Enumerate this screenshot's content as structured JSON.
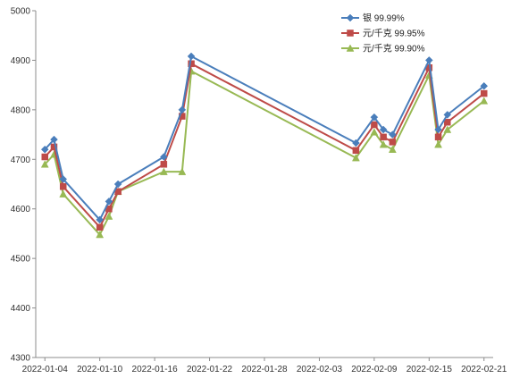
{
  "chart_data": {
    "type": "line",
    "title": "",
    "xlabel": "",
    "ylabel": "",
    "ylim": [
      4300,
      5000
    ],
    "yticks": [
      4300,
      4400,
      4500,
      4600,
      4700,
      4800,
      4900,
      5000
    ],
    "xlim": [
      "2022-01-03",
      "2022-02-22"
    ],
    "xticks": [
      "2022-01-04",
      "2022-01-10",
      "2022-01-16",
      "2022-01-22",
      "2022-01-28",
      "2022-02-03",
      "2022-02-09",
      "2022-02-15",
      "2022-02-21"
    ],
    "grid": false,
    "legend_position": "top-right",
    "x": [
      "2022-01-04",
      "2022-01-05",
      "2022-01-06",
      "2022-01-10",
      "2022-01-11",
      "2022-01-12",
      "2022-01-17",
      "2022-01-19",
      "2022-01-20",
      "2022-02-07",
      "2022-02-09",
      "2022-02-10",
      "2022-02-11",
      "2022-02-15",
      "2022-02-16",
      "2022-02-17",
      "2022-02-21"
    ],
    "series": [
      {
        "name": "银 99.99%",
        "color": "#4a7ebb",
        "marker": "diamond",
        "values": [
          4720,
          4740,
          4660,
          4578,
          4615,
          4650,
          4705,
          4800,
          4908,
          4733,
          4785,
          4760,
          4750,
          4900,
          4760,
          4790,
          4848
        ]
      },
      {
        "name": "元/千克 99.95%",
        "color": "#be4b48",
        "marker": "square",
        "values": [
          4705,
          4725,
          4645,
          4563,
          4600,
          4635,
          4690,
          4787,
          4893,
          4718,
          4770,
          4745,
          4735,
          4885,
          4745,
          4775,
          4833
        ]
      },
      {
        "name": "元/千克 99.90%",
        "color": "#98b954",
        "marker": "triangle",
        "values": [
          4690,
          4710,
          4630,
          4548,
          4585,
          4635,
          4675,
          4675,
          4878,
          4703,
          4755,
          4730,
          4720,
          4870,
          4730,
          4760,
          4818
        ]
      }
    ]
  }
}
